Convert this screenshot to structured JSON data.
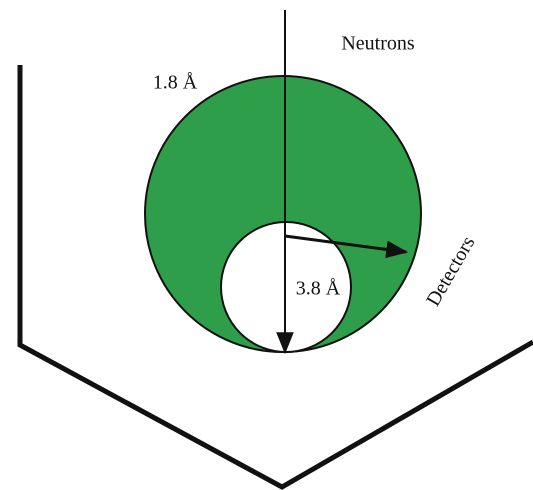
{
  "labels": {
    "beam": "Neutrons",
    "outer_radius": "1.8 Å",
    "inner_radius": "3.8 Å",
    "detectors": "Detectors"
  }
}
